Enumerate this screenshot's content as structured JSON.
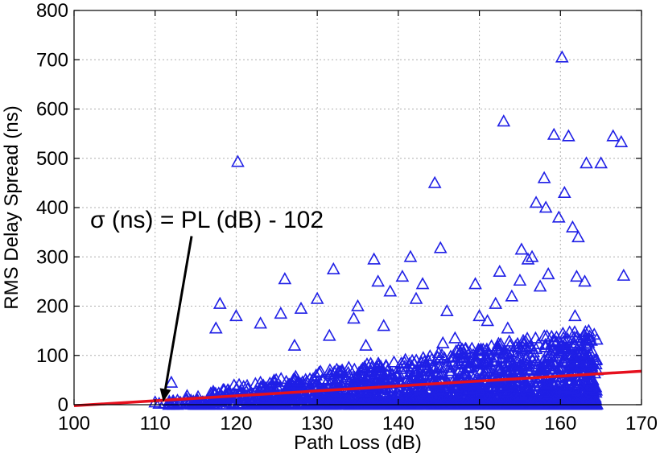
{
  "chart_data": {
    "type": "scatter",
    "xlabel": "Path Loss (dB)",
    "ylabel": "RMS Delay Spread (ns)",
    "xlim": [
      100,
      170
    ],
    "ylim": [
      0,
      800
    ],
    "xticks": [
      100,
      110,
      120,
      130,
      140,
      150,
      160,
      170
    ],
    "yticks": [
      0,
      100,
      200,
      300,
      400,
      500,
      600,
      700,
      800
    ],
    "xtick_labels": [
      "100",
      "110",
      "120",
      "130",
      "140",
      "150",
      "160",
      "170"
    ],
    "ytick_labels": [
      "0",
      "100",
      "200",
      "300",
      "400",
      "500",
      "600",
      "700",
      "800"
    ],
    "grid": true,
    "marker": "triangle",
    "colors": {
      "points": "#1f1fe6",
      "fit_line": "#e6101e",
      "grid": "#b0b0b0"
    },
    "fit_line": {
      "slope": 1,
      "intercept": -102,
      "x": [
        100,
        170
      ],
      "y": [
        -2,
        68
      ]
    },
    "annotation": {
      "text": "σ (ns) = PL (dB) - 102",
      "arrow_from": [
        114.5,
        342
      ],
      "arrow_to": [
        111.0,
        6
      ]
    },
    "x": [
      160.2,
      153.0,
      159.2,
      161.0,
      166.5,
      167.5,
      157.0,
      120.2,
      163.2,
      165.0,
      158.0,
      160.5,
      158.2,
      159.8,
      161.5,
      162.2,
      156.5,
      144.5,
      156.0,
      155.2,
      163.0,
      152.5,
      145.2,
      141.5,
      137.0,
      132.0,
      155.0,
      158.5,
      157.5,
      162.0,
      167.8,
      126.0,
      118.0,
      120.0,
      117.5,
      112.0,
      110.0,
      137.5,
      143.0,
      146.0,
      149.5,
      152.0,
      154.0,
      135.0,
      130.0,
      125.5,
      123.0,
      139.0,
      140.5,
      142.2,
      134.5,
      128.0,
      147.0,
      151.0,
      161.8,
      163.5,
      164.5,
      153.5,
      150.0,
      131.5,
      127.2,
      145.5,
      148.2,
      138.2,
      136.0
    ],
    "y": [
      705,
      575,
      548,
      545,
      545,
      533,
      410,
      493,
      490,
      490,
      460,
      430,
      400,
      380,
      360,
      340,
      300,
      450,
      295,
      315,
      250,
      270,
      318,
      300,
      295,
      275,
      252,
      265,
      240,
      260,
      262,
      255,
      205,
      180,
      155,
      45,
      5,
      250,
      245,
      190,
      245,
      205,
      220,
      200,
      215,
      185,
      165,
      230,
      260,
      215,
      175,
      195,
      135,
      170,
      180,
      100,
      70,
      155,
      180,
      140,
      120,
      125,
      95,
      160,
      120
    ]
  }
}
